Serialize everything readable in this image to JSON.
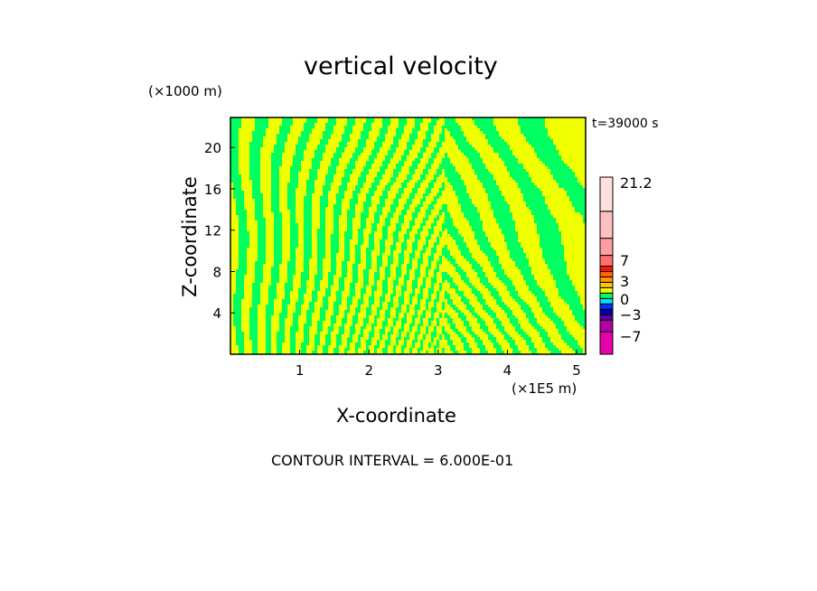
{
  "chart_data": {
    "type": "heatmap",
    "title": "vertical velocity",
    "xlabel": "X-coordinate",
    "ylabel": "Z-coordinate",
    "x_unit": "(×1E5 m)",
    "y_unit": "(×1000 m)",
    "time_label": "t=39000 s",
    "footer": "CONTOUR INTERVAL = 6.000E-01",
    "xlim": [
      0,
      5.13
    ],
    "ylim": [
      0,
      22.9
    ],
    "xticks": [
      "1",
      "2",
      "3",
      "4",
      "5"
    ],
    "xtick_values": [
      1,
      2,
      3,
      4,
      5
    ],
    "yticks": [
      "4",
      "8",
      "12",
      "16",
      "20"
    ],
    "ytick_values": [
      4,
      8,
      12,
      16,
      20
    ],
    "field_summary": "alternating bands of -0.6–0 (green) and 0–0.6 (yellow); tilted bands aloft, narrow vertical columns in center",
    "colorbar": {
      "labels": [
        "21.2",
        "7",
        "3",
        "0",
        "−3",
        "−7"
      ],
      "label_values": [
        21.2,
        7,
        3,
        0,
        -3,
        -7
      ],
      "colors_bottom_to_top": [
        "#e800a8",
        "#b000a8",
        "#6000a8",
        "#0000a8",
        "#0030ff",
        "#00e0ff",
        "#00ff60",
        "#f0ff00",
        "#ffc800",
        "#ff9600",
        "#ff6400",
        "#ff1000",
        "#ff7070",
        "#ffa0a0",
        "#ffc0c0",
        "#ffe0e0"
      ],
      "segment_weights": [
        25,
        13,
        6,
        6,
        6,
        6,
        6,
        6,
        6,
        6,
        6,
        6,
        12,
        19,
        30,
        38
      ]
    },
    "field_colors": {
      "negative": "#00ff60",
      "positive": "#f0ff00"
    }
  }
}
